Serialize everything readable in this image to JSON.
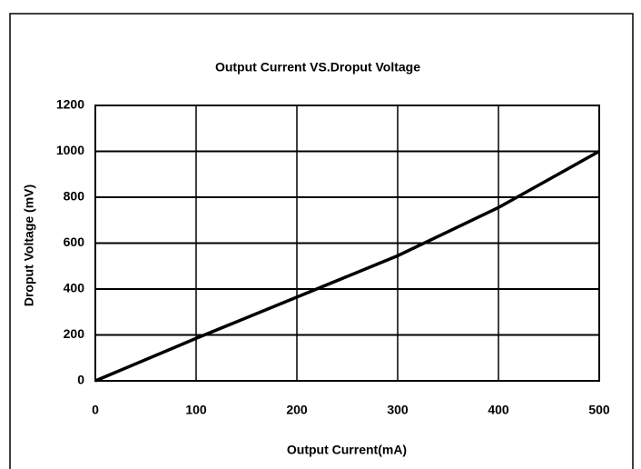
{
  "chart_data": {
    "type": "line",
    "title": "Output Current VS.Droput Voltage",
    "x_label": "Output Current(mA)",
    "y_label": "Droput Voltage (mV)",
    "x": [
      0,
      100,
      200,
      300,
      400,
      500
    ],
    "series": [
      {
        "color": "#000000",
        "values": [
          0,
          185,
          365,
          545,
          755,
          1000
        ]
      }
    ],
    "xlim": [
      0,
      500
    ],
    "xticks": [
      0,
      100,
      200,
      300,
      400,
      500
    ],
    "ylim": [
      0,
      1200
    ],
    "yticks": [
      0,
      200,
      400,
      600,
      800,
      1000,
      1200
    ],
    "grid": true
  }
}
